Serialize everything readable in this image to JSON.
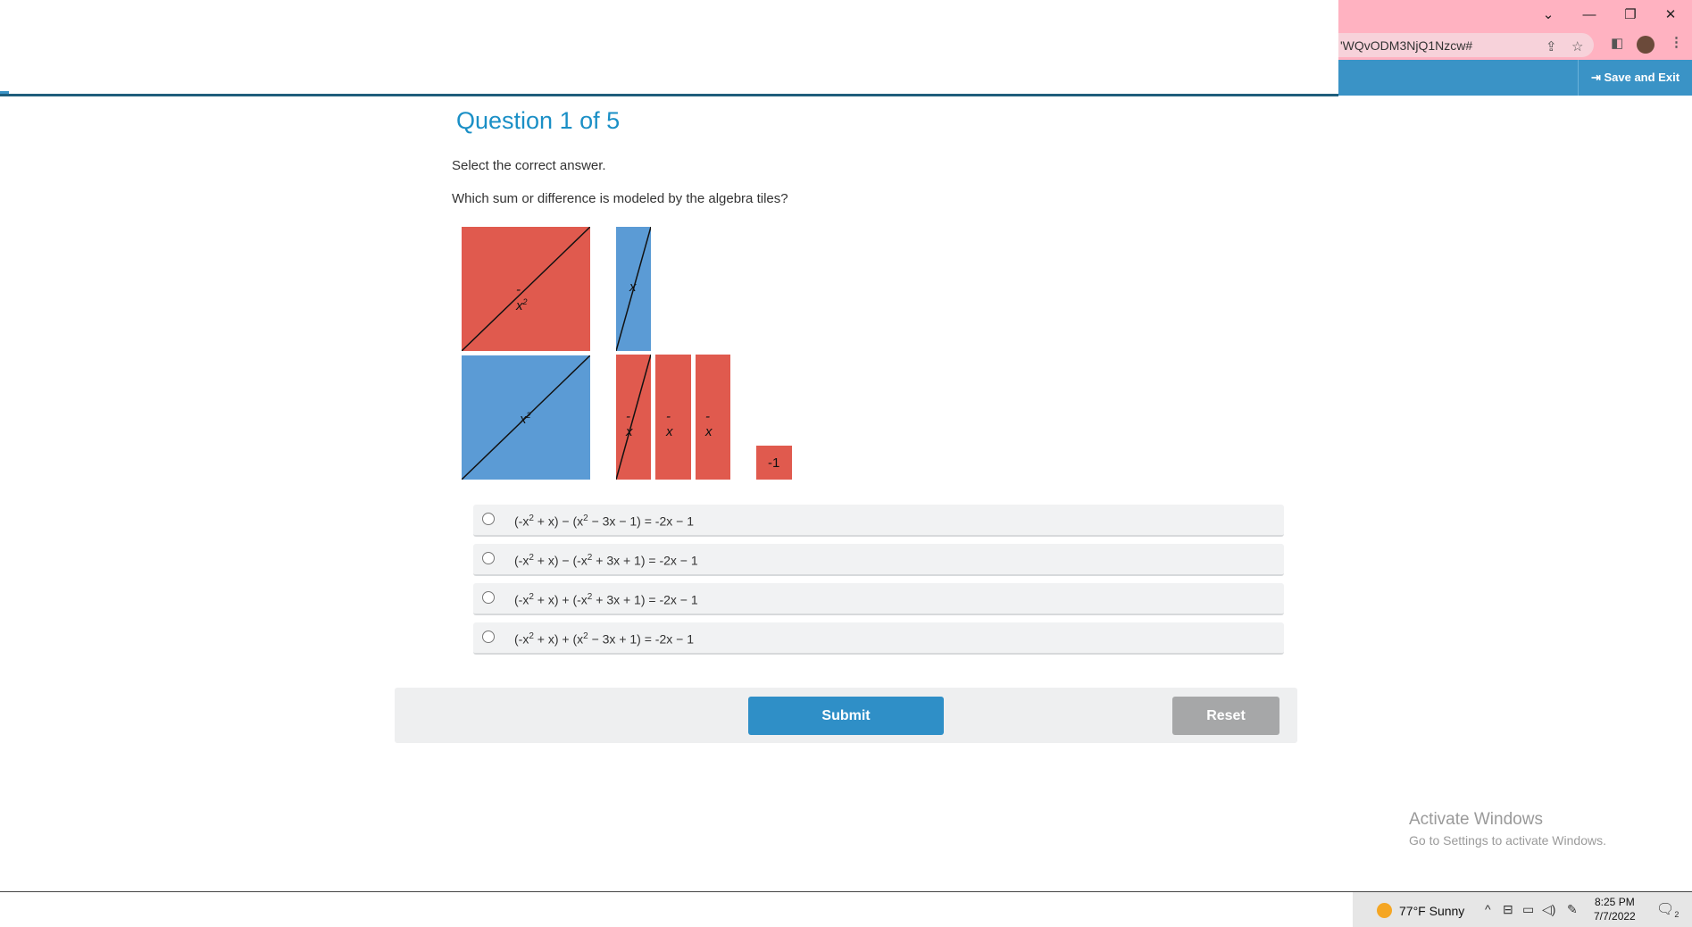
{
  "browser": {
    "address_text": "'WQvODM3NjQ1Nzcw#",
    "save_exit_label": "Save and Exit",
    "icons": [
      "chevron-down-icon",
      "minimize-icon",
      "restore-icon",
      "close-icon",
      "share-icon",
      "star-icon",
      "sidepanel-icon",
      "avatar",
      "more-icon",
      "login-icon"
    ]
  },
  "question": {
    "title": "Question 1 of 5",
    "instruction": "Select the correct answer.",
    "prompt": "Which sum or difference is modeled by the algebra tiles?"
  },
  "tiles": {
    "labels": {
      "neg_x2": "-x",
      "neg_x2_exp": "2",
      "pos_x2": "x",
      "pos_x2_exp": "2",
      "pos_x": "x",
      "neg_x_1": "-x",
      "neg_x_2": "-x",
      "neg_x_3": "-x",
      "neg_one": "-1"
    },
    "colors": {
      "negative": "#e05a4e",
      "positive": "#5b9bd5"
    }
  },
  "choices": [
    {
      "parts": [
        "(-x",
        "2",
        " + x) − (x",
        "2",
        " − 3x − 1) = -2x − 1"
      ]
    },
    {
      "parts": [
        "(-x",
        "2",
        " + x) − (-x",
        "2",
        " + 3x + 1) = -2x − 1"
      ]
    },
    {
      "parts": [
        "(-x",
        "2",
        " + x) + (-x",
        "2",
        " + 3x + 1) = -2x − 1"
      ]
    },
    {
      "parts": [
        "(-x",
        "2",
        " + x) + (x",
        "2",
        " − 3x + 1) = -2x − 1"
      ]
    }
  ],
  "actions": {
    "submit_label": "Submit",
    "reset_label": "Reset"
  },
  "watermark": {
    "title": "Activate Windows",
    "subtitle": "Go to Settings to activate Windows."
  },
  "taskbar": {
    "weather": "77°F  Sunny",
    "time": "8:25 PM",
    "date": "7/7/2022",
    "notification_count": "2"
  }
}
